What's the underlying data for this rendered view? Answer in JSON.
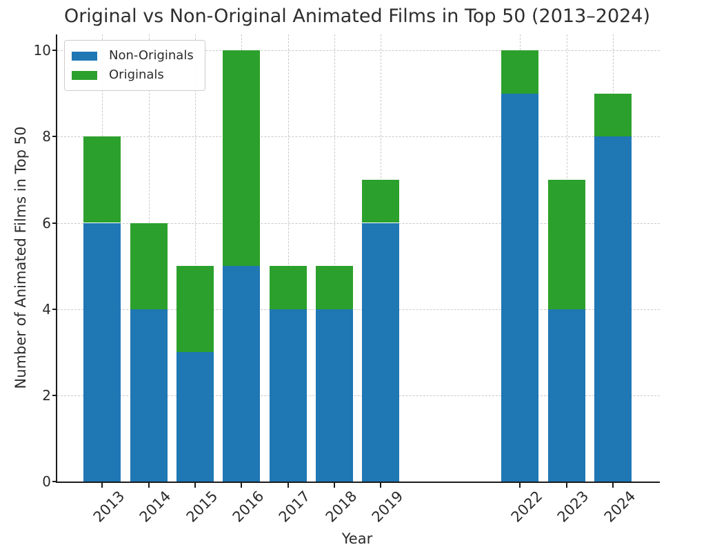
{
  "chart_data": {
    "type": "bar",
    "stacked": true,
    "title": "Original vs Non-Original Animated Films in Top 50 (2013–2024)",
    "xlabel": "Year",
    "ylabel": "Number of Animated Films in Top 50",
    "categories": [
      2013,
      2014,
      2015,
      2016,
      2017,
      2018,
      2019,
      2022,
      2023,
      2024
    ],
    "series": [
      {
        "name": "Non-Originals",
        "color": "#1f77b4",
        "values": [
          6,
          4,
          3,
          5,
          4,
          4,
          6,
          9,
          4,
          8
        ]
      },
      {
        "name": "Originals",
        "color": "#2ca02c",
        "values": [
          2,
          2,
          2,
          5,
          1,
          1,
          1,
          1,
          3,
          1
        ]
      }
    ],
    "x_range": [
      2012.03,
      2024.98
    ],
    "ylim": [
      0,
      10.37
    ],
    "yticks": [
      0,
      2,
      4,
      6,
      8,
      10
    ],
    "grid": true,
    "grid_style": "dashed",
    "legend_position": "upper-left",
    "colors": {
      "grid": "#c9c9c9",
      "axis": "#1a1a1a",
      "text": "#2b2b2b"
    }
  }
}
